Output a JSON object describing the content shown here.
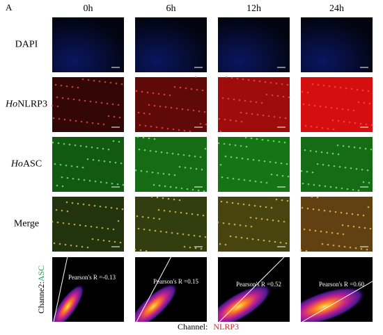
{
  "figure": {
    "panel_label": "A",
    "columns": [
      "0h",
      "6h",
      "12h",
      "24h"
    ],
    "rows": [
      {
        "name": "DAPI"
      },
      {
        "prefix": "Ho",
        "name": "NLRP3"
      },
      {
        "prefix": "Ho",
        "name": "ASC"
      },
      {
        "name": "Merge"
      }
    ],
    "pearson": [
      "Pearson's R =-0.13",
      "Pearson's R =0.15",
      "Pearson's R =0.52",
      "Pearson's R =0.60"
    ],
    "y_axis_label": {
      "prefix": "Channe2:",
      "channel": "ASC"
    },
    "x_axis_label": {
      "prefix": "Channel:",
      "channel": "NLRP3"
    }
  }
}
